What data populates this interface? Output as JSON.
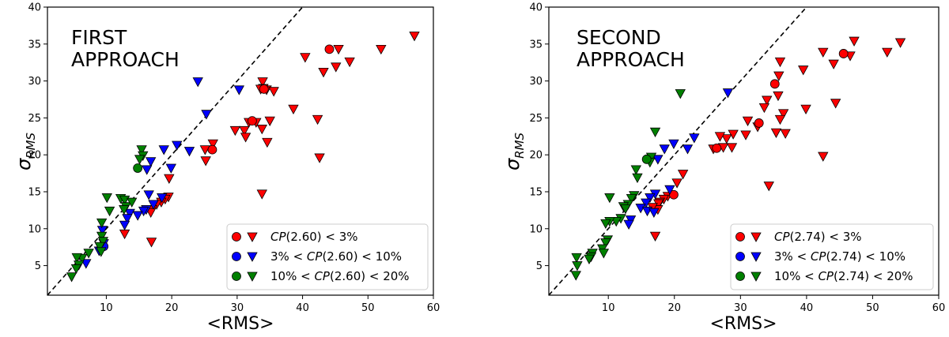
{
  "chart_data": [
    {
      "type": "scatter",
      "title": "",
      "annotation_lines": [
        "FIRST",
        "APPROACH"
      ],
      "xlabel": "<RMS>",
      "ylabel_main": "σ",
      "ylabel_sub": "RMS",
      "xlim": [
        1,
        60
      ],
      "ylim": [
        1,
        40
      ],
      "xticks": [
        10,
        20,
        30,
        40,
        50,
        60
      ],
      "yticks": [
        5,
        10,
        15,
        20,
        25,
        30,
        35,
        40
      ],
      "identity_line": true,
      "legend_position": "lower-right",
      "legend": [
        {
          "color": "#ff0000",
          "pre": "",
          "cp": "CP",
          "arg": "(2.60)",
          "post": " < 3%"
        },
        {
          "color": "#0000ff",
          "pre": "3% < ",
          "cp": "CP",
          "arg": "(2.60)",
          "post": " < 10%"
        },
        {
          "color": "#008000",
          "pre": "10% < ",
          "cp": "CP",
          "arg": "(2.60)",
          "post": " < 20%"
        }
      ],
      "series": [
        {
          "name": "CP(2.60) < 3%",
          "color": "#ff0000",
          "circles": [
            [
              44.1,
              34.3
            ],
            [
              32.3,
              24.6
            ],
            [
              34.1,
              28.9
            ],
            [
              26.2,
              20.7
            ]
          ],
          "triangles": [
            [
              57.1,
              36.1
            ],
            [
              52.0,
              34.3
            ],
            [
              45.5,
              34.3
            ],
            [
              47.2,
              32.6
            ],
            [
              45.1,
              31.9
            ],
            [
              43.2,
              31.2
            ],
            [
              40.4,
              33.2
            ],
            [
              33.9,
              29.9
            ],
            [
              34.0,
              29.0
            ],
            [
              34.5,
              28.8
            ],
            [
              35.6,
              28.6
            ],
            [
              33.6,
              28.9
            ],
            [
              38.6,
              26.2
            ],
            [
              42.3,
              24.8
            ],
            [
              35.0,
              24.6
            ],
            [
              32.9,
              24.4
            ],
            [
              31.8,
              24.4
            ],
            [
              29.7,
              23.3
            ],
            [
              31.1,
              23.3
            ],
            [
              31.3,
              22.4
            ],
            [
              33.8,
              23.5
            ],
            [
              34.6,
              21.7
            ],
            [
              42.6,
              19.6
            ],
            [
              26.3,
              21.5
            ],
            [
              25.1,
              20.7
            ],
            [
              25.2,
              19.2
            ],
            [
              33.8,
              14.7
            ],
            [
              19.6,
              16.8
            ],
            [
              19.5,
              14.3
            ],
            [
              19.0,
              14.0
            ],
            [
              18.4,
              13.6
            ],
            [
              17.7,
              13.3
            ],
            [
              17.0,
              12.6
            ],
            [
              16.8,
              12.2
            ],
            [
              12.8,
              9.3
            ],
            [
              16.9,
              8.2
            ]
          ]
        },
        {
          "name": "3% < CP(2.60) < 10%",
          "color": "#0000ff",
          "circles": [
            [
              9.6,
              7.6
            ]
          ],
          "triangles": [
            [
              24.0,
              29.9
            ],
            [
              30.3,
              28.8
            ],
            [
              25.3,
              25.5
            ],
            [
              22.7,
              20.5
            ],
            [
              20.8,
              21.3
            ],
            [
              18.8,
              20.7
            ],
            [
              16.8,
              19.1
            ],
            [
              16.2,
              18.0
            ],
            [
              19.9,
              18.2
            ],
            [
              16.5,
              14.6
            ],
            [
              18.5,
              14.2
            ],
            [
              17.2,
              13.3
            ],
            [
              16.1,
              12.6
            ],
            [
              15.7,
              12.4
            ],
            [
              13.6,
              12.1
            ],
            [
              13.2,
              11.4
            ],
            [
              14.8,
              11.8
            ],
            [
              12.8,
              10.5
            ],
            [
              9.4,
              9.8
            ],
            [
              6.9,
              5.3
            ],
            [
              8.9,
              7.0
            ],
            [
              9.6,
              8.0
            ]
          ]
        },
        {
          "name": "10% < CP(2.60) < 20%",
          "color": "#008000",
          "circles": [
            [
              14.8,
              18.2
            ]
          ],
          "triangles": [
            [
              15.4,
              20.7
            ],
            [
              15.6,
              19.9
            ],
            [
              15.1,
              19.4
            ],
            [
              10.1,
              14.2
            ],
            [
              12.2,
              14.1
            ],
            [
              12.8,
              13.9
            ],
            [
              13.0,
              13.0
            ],
            [
              13.9,
              13.6
            ],
            [
              12.7,
              12.6
            ],
            [
              10.5,
              12.4
            ],
            [
              9.3,
              10.8
            ],
            [
              9.3,
              9.0
            ],
            [
              9.5,
              8.3
            ],
            [
              9.0,
              7.6
            ],
            [
              9.2,
              6.9
            ],
            [
              7.3,
              6.7
            ],
            [
              6.3,
              6.0
            ],
            [
              5.5,
              6.1
            ],
            [
              5.8,
              5.1
            ],
            [
              5.4,
              4.6
            ],
            [
              4.7,
              3.5
            ]
          ]
        }
      ]
    },
    {
      "type": "scatter",
      "title": "",
      "annotation_lines": [
        "SECOND",
        "APPROACH"
      ],
      "xlabel": "<RMS>",
      "ylabel_main": "σ",
      "ylabel_sub": "RMS",
      "xlim": [
        1,
        60
      ],
      "ylim": [
        1,
        40
      ],
      "xticks": [
        10,
        20,
        30,
        40,
        50,
        60
      ],
      "yticks": [
        5,
        10,
        15,
        20,
        25,
        30,
        35,
        40
      ],
      "identity_line": true,
      "legend_position": "lower-right",
      "legend": [
        {
          "color": "#ff0000",
          "pre": "",
          "cp": "CP",
          "arg": "(2.74)",
          "post": " < 3%"
        },
        {
          "color": "#0000ff",
          "pre": "3% < ",
          "cp": "CP",
          "arg": "(2.74)",
          "post": " < 10%"
        },
        {
          "color": "#008000",
          "pre": "10% < ",
          "cp": "CP",
          "arg": "(2.74)",
          "post": " < 20%"
        }
      ],
      "series": [
        {
          "name": "CP(2.74) < 3%",
          "color": "#ff0000",
          "circles": [
            [
              45.6,
              33.7
            ],
            [
              35.2,
              29.6
            ],
            [
              32.8,
              24.3
            ],
            [
              26.4,
              20.9
            ],
            [
              19.9,
              14.6
            ]
          ],
          "triangles": [
            [
              54.2,
              35.2
            ],
            [
              47.2,
              35.4
            ],
            [
              52.2,
              33.9
            ],
            [
              46.6,
              33.4
            ],
            [
              42.5,
              33.9
            ],
            [
              44.1,
              32.3
            ],
            [
              36.0,
              32.6
            ],
            [
              35.8,
              30.7
            ],
            [
              39.5,
              31.5
            ],
            [
              35.7,
              28.0
            ],
            [
              34.0,
              27.4
            ],
            [
              36.5,
              25.6
            ],
            [
              36.0,
              24.8
            ],
            [
              33.6,
              26.4
            ],
            [
              31.1,
              24.6
            ],
            [
              32.6,
              23.8
            ],
            [
              30.8,
              22.7
            ],
            [
              35.4,
              23.0
            ],
            [
              28.9,
              22.8
            ],
            [
              36.8,
              22.9
            ],
            [
              27.9,
              22.2
            ],
            [
              26.9,
              22.5
            ],
            [
              28.7,
              21.0
            ],
            [
              27.4,
              21.0
            ],
            [
              25.9,
              20.8
            ],
            [
              44.4,
              27.0
            ],
            [
              39.9,
              26.2
            ],
            [
              42.5,
              19.8
            ],
            [
              34.3,
              15.8
            ],
            [
              21.3,
              17.4
            ],
            [
              20.4,
              16.2
            ],
            [
              19.0,
              14.4
            ],
            [
              18.4,
              14.0
            ],
            [
              17.8,
              13.6
            ],
            [
              17.6,
              13.4
            ],
            [
              17.5,
              12.6
            ],
            [
              16.7,
              12.9
            ],
            [
              17.1,
              9.0
            ]
          ]
        },
        {
          "name": "3% < CP(2.74) < 10%",
          "color": "#0000ff",
          "circles": [],
          "triangles": [
            [
              28.1,
              28.4
            ],
            [
              23.0,
              22.3
            ],
            [
              22.0,
              20.8
            ],
            [
              19.9,
              21.5
            ],
            [
              18.5,
              20.8
            ],
            [
              17.5,
              19.4
            ],
            [
              17.1,
              14.7
            ],
            [
              19.3,
              15.3
            ],
            [
              16.3,
              14.2
            ],
            [
              15.7,
              13.5
            ],
            [
              14.9,
              12.8
            ],
            [
              15.9,
              12.4
            ],
            [
              16.9,
              12.2
            ],
            [
              13.4,
              11.2
            ],
            [
              13.1,
              10.6
            ]
          ]
        },
        {
          "name": "10% < CP(2.74) < 20%",
          "color": "#008000",
          "circles": [
            [
              15.8,
              19.4
            ]
          ],
          "triangles": [
            [
              20.9,
              28.3
            ],
            [
              17.1,
              23.1
            ],
            [
              16.5,
              19.7
            ],
            [
              16.3,
              19.0
            ],
            [
              14.2,
              18.0
            ],
            [
              14.4,
              16.9
            ],
            [
              10.2,
              14.2
            ],
            [
              13.9,
              14.5
            ],
            [
              13.5,
              14.1
            ],
            [
              13.0,
              13.3
            ],
            [
              12.3,
              13.0
            ],
            [
              12.6,
              12.7
            ],
            [
              11.9,
              11.4
            ],
            [
              11.2,
              11.0
            ],
            [
              10.2,
              11.0
            ],
            [
              9.6,
              10.7
            ],
            [
              9.9,
              8.5
            ],
            [
              9.6,
              8.1
            ],
            [
              9.1,
              7.3
            ],
            [
              9.3,
              6.7
            ],
            [
              7.6,
              6.7
            ],
            [
              7.4,
              6.2
            ],
            [
              7.1,
              5.9
            ],
            [
              5.2,
              6.1
            ],
            [
              5.3,
              5.0
            ],
            [
              5.1,
              3.7
            ]
          ]
        }
      ]
    }
  ]
}
